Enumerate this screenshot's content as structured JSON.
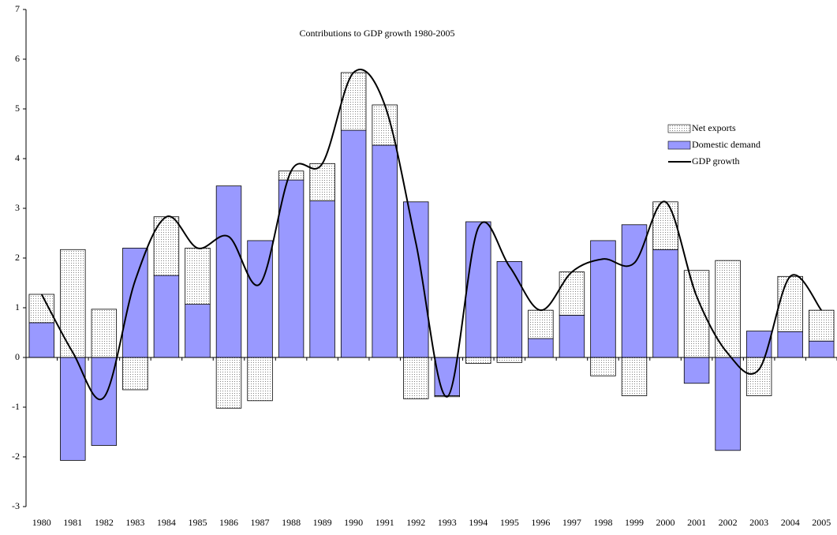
{
  "chart_data": {
    "type": "bar",
    "title": "Contributions to GDP growth 1980-2005",
    "categories": [
      "1980",
      "1981",
      "1982",
      "1983",
      "1984",
      "1985",
      "1986",
      "1987",
      "1988",
      "1989",
      "1990",
      "1991",
      "1992",
      "1993",
      "1994",
      "1995",
      "1996",
      "1997",
      "1998",
      "1999",
      "2000",
      "2001",
      "2002",
      "2003",
      "2004",
      "2005"
    ],
    "series": [
      {
        "name": "Domestic demand",
        "color": "#9999ff",
        "type": "bar",
        "values": [
          0.7,
          -2.07,
          -1.77,
          2.2,
          1.65,
          1.07,
          3.45,
          2.35,
          3.57,
          3.15,
          4.57,
          4.27,
          3.13,
          -0.77,
          2.73,
          1.93,
          0.38,
          0.85,
          2.35,
          2.67,
          2.17,
          -0.52,
          -1.87,
          0.53,
          0.52,
          0.33
        ]
      },
      {
        "name": "Net exports",
        "color": "#808080",
        "type": "bar",
        "values": [
          0.57,
          2.17,
          0.97,
          -0.65,
          1.18,
          1.13,
          -1.02,
          -0.87,
          0.18,
          0.75,
          1.16,
          0.81,
          -0.83,
          -0.02,
          -0.12,
          -0.1,
          0.57,
          0.87,
          -0.37,
          -0.77,
          0.96,
          1.75,
          1.95,
          -0.77,
          1.11,
          0.62
        ]
      },
      {
        "name": "GDP growth",
        "color": "#000000",
        "type": "line",
        "values": [
          1.27,
          0.1,
          -0.8,
          1.55,
          2.83,
          2.2,
          2.43,
          1.48,
          3.75,
          3.9,
          5.73,
          5.08,
          2.3,
          -0.79,
          2.61,
          1.83,
          0.95,
          1.72,
          1.98,
          1.9,
          3.13,
          1.23,
          0.08,
          -0.24,
          1.63,
          0.95
        ]
      }
    ],
    "legend_order": [
      1,
      0,
      2
    ],
    "ylim": [
      -3,
      7
    ],
    "yticks": [
      -3,
      -2,
      -1,
      0,
      1,
      2,
      3,
      4,
      5,
      6,
      7
    ]
  }
}
